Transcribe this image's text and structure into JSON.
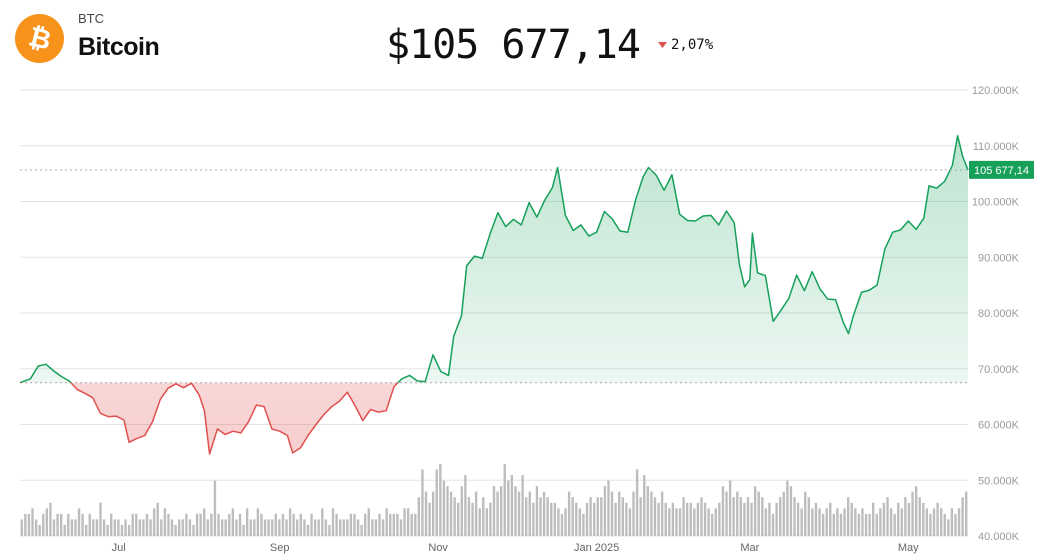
{
  "header": {
    "ticker": "BTC",
    "name": "Bitcoin",
    "logo_icon": "bitcoin-logo-icon",
    "price": "$105 677,14",
    "change": "2,07%",
    "change_direction": "down",
    "change_icon": "triangle-down-icon"
  },
  "colors": {
    "logo": "#F7931A",
    "up": "#16A05A",
    "down": "#E0504E",
    "volume": "#BDBDBD",
    "grid": "#E3E3E3",
    "axis_text": "#9A9A9A"
  },
  "chart_data": {
    "type": "line",
    "ylim": [
      40000,
      120000
    ],
    "y_ticks": [
      120000,
      110000,
      100000,
      90000,
      80000,
      70000,
      60000,
      50000,
      40000
    ],
    "y_tick_labels": [
      "120.000K",
      "110.000K",
      "100.000K",
      "90.000K",
      "80.000K",
      "70.000K",
      "60.000K",
      "50.000K",
      "40.000K"
    ],
    "x_tick_labels": [
      "Jul",
      "Sep",
      "Nov",
      "Jan 2025",
      "Mar",
      "May"
    ],
    "x_tick_dates": [
      "2024-07-01",
      "2024-09-01",
      "2024-11-01",
      "2025-01-01",
      "2025-03-01",
      "2025-05-01"
    ],
    "xlim": [
      "2024-05-24",
      "2025-05-24"
    ],
    "baseline": 67500,
    "current_value": 105677.14,
    "current_value_label": "105 677,14",
    "grid": true,
    "series": [
      {
        "type": "line",
        "points": [
          [
            "2024-05-24",
            67500
          ],
          [
            "2024-05-28",
            68200
          ],
          [
            "2024-05-31",
            70500
          ],
          [
            "2024-06-03",
            70800
          ],
          [
            "2024-06-06",
            69600
          ],
          [
            "2024-06-09",
            68600
          ],
          [
            "2024-06-12",
            67800
          ],
          [
            "2024-06-15",
            66300
          ],
          [
            "2024-06-18",
            65600
          ],
          [
            "2024-06-21",
            64800
          ],
          [
            "2024-06-24",
            62000
          ],
          [
            "2024-06-27",
            61400
          ],
          [
            "2024-06-30",
            61500
          ],
          [
            "2024-07-03",
            60800
          ],
          [
            "2024-07-05",
            56800
          ],
          [
            "2024-07-08",
            57500
          ],
          [
            "2024-07-11",
            58000
          ],
          [
            "2024-07-14",
            60500
          ],
          [
            "2024-07-17",
            64500
          ],
          [
            "2024-07-20",
            66500
          ],
          [
            "2024-07-23",
            67300
          ],
          [
            "2024-07-26",
            66600
          ],
          [
            "2024-07-29",
            67400
          ],
          [
            "2024-08-01",
            65300
          ],
          [
            "2024-08-03",
            62500
          ],
          [
            "2024-08-05",
            54700
          ],
          [
            "2024-08-08",
            59200
          ],
          [
            "2024-08-11",
            58200
          ],
          [
            "2024-08-14",
            58800
          ],
          [
            "2024-08-17",
            58500
          ],
          [
            "2024-08-20",
            60500
          ],
          [
            "2024-08-23",
            63500
          ],
          [
            "2024-08-26",
            63200
          ],
          [
            "2024-08-29",
            59200
          ],
          [
            "2024-09-01",
            58800
          ],
          [
            "2024-09-04",
            58000
          ],
          [
            "2024-09-06",
            54900
          ],
          [
            "2024-09-09",
            55800
          ],
          [
            "2024-09-12",
            58100
          ],
          [
            "2024-09-15",
            60000
          ],
          [
            "2024-09-18",
            61800
          ],
          [
            "2024-09-21",
            63200
          ],
          [
            "2024-09-24",
            64200
          ],
          [
            "2024-09-27",
            65800
          ],
          [
            "2024-09-30",
            63400
          ],
          [
            "2024-10-03",
            60700
          ],
          [
            "2024-10-06",
            62700
          ],
          [
            "2024-10-09",
            62200
          ],
          [
            "2024-10-12",
            62500
          ],
          [
            "2024-10-15",
            66800
          ],
          [
            "2024-10-18",
            68200
          ],
          [
            "2024-10-21",
            68800
          ],
          [
            "2024-10-24",
            67800
          ],
          [
            "2024-10-27",
            67700
          ],
          [
            "2024-10-30",
            72500
          ],
          [
            "2024-11-02",
            69500
          ],
          [
            "2024-11-05",
            68800
          ],
          [
            "2024-11-07",
            75800
          ],
          [
            "2024-11-10",
            79500
          ],
          [
            "2024-11-12",
            88500
          ],
          [
            "2024-11-15",
            90200
          ],
          [
            "2024-11-18",
            89800
          ],
          [
            "2024-11-21",
            94200
          ],
          [
            "2024-11-24",
            98000
          ],
          [
            "2024-11-27",
            95500
          ],
          [
            "2024-11-30",
            96800
          ],
          [
            "2024-12-03",
            95800
          ],
          [
            "2024-12-06",
            99800
          ],
          [
            "2024-12-09",
            97200
          ],
          [
            "2024-12-12",
            100200
          ],
          [
            "2024-12-15",
            102500
          ],
          [
            "2024-12-17",
            106100
          ],
          [
            "2024-12-20",
            97500
          ],
          [
            "2024-12-23",
            94800
          ],
          [
            "2024-12-26",
            95800
          ],
          [
            "2024-12-29",
            93800
          ],
          [
            "2025-01-01",
            94500
          ],
          [
            "2025-01-04",
            98200
          ],
          [
            "2025-01-07",
            96900
          ],
          [
            "2025-01-10",
            94700
          ],
          [
            "2025-01-13",
            94500
          ],
          [
            "2025-01-16",
            100300
          ],
          [
            "2025-01-19",
            104500
          ],
          [
            "2025-01-21",
            106100
          ],
          [
            "2025-01-24",
            104700
          ],
          [
            "2025-01-27",
            102000
          ],
          [
            "2025-01-30",
            104800
          ],
          [
            "2025-02-02",
            97700
          ],
          [
            "2025-02-05",
            96600
          ],
          [
            "2025-02-08",
            96500
          ],
          [
            "2025-02-11",
            97400
          ],
          [
            "2025-02-14",
            97500
          ],
          [
            "2025-02-17",
            95800
          ],
          [
            "2025-02-20",
            98300
          ],
          [
            "2025-02-23",
            96200
          ],
          [
            "2025-02-25",
            88700
          ],
          [
            "2025-02-27",
            84700
          ],
          [
            "2025-03-01",
            86000
          ],
          [
            "2025-03-02",
            94300
          ],
          [
            "2025-03-04",
            87200
          ],
          [
            "2025-03-07",
            86700
          ],
          [
            "2025-03-10",
            78500
          ],
          [
            "2025-03-13",
            80500
          ],
          [
            "2025-03-16",
            82600
          ],
          [
            "2025-03-19",
            86800
          ],
          [
            "2025-03-22",
            84000
          ],
          [
            "2025-03-25",
            87400
          ],
          [
            "2025-03-28",
            84300
          ],
          [
            "2025-03-31",
            82500
          ],
          [
            "2025-04-03",
            82400
          ],
          [
            "2025-04-06",
            78300
          ],
          [
            "2025-04-08",
            76300
          ],
          [
            "2025-04-10",
            79700
          ],
          [
            "2025-04-13",
            83700
          ],
          [
            "2025-04-16",
            84100
          ],
          [
            "2025-04-19",
            85000
          ],
          [
            "2025-04-22",
            91500
          ],
          [
            "2025-04-25",
            94500
          ],
          [
            "2025-04-28",
            94900
          ],
          [
            "2025-05-01",
            96500
          ],
          [
            "2025-05-04",
            95000
          ],
          [
            "2025-05-07",
            97000
          ],
          [
            "2025-05-09",
            102800
          ],
          [
            "2025-05-12",
            102400
          ],
          [
            "2025-05-15",
            103600
          ],
          [
            "2025-05-18",
            106500
          ],
          [
            "2025-05-20",
            111800
          ],
          [
            "2025-05-22",
            108000
          ],
          [
            "2025-05-24",
            105677
          ]
        ]
      }
    ],
    "volume": [
      3,
      4,
      4,
      5,
      3,
      2,
      4,
      5,
      6,
      3,
      4,
      4,
      2,
      4,
      3,
      3,
      5,
      4,
      2,
      4,
      3,
      3,
      6,
      3,
      2,
      4,
      3,
      3,
      2,
      3,
      2,
      4,
      4,
      3,
      3,
      4,
      3,
      5,
      6,
      3,
      5,
      4,
      3,
      2,
      3,
      3,
      4,
      3,
      2,
      4,
      4,
      5,
      3,
      4,
      10,
      4,
      3,
      3,
      4,
      5,
      3,
      4,
      2,
      5,
      3,
      3,
      5,
      4,
      3,
      3,
      3,
      4,
      3,
      4,
      3,
      5,
      4,
      3,
      4,
      3,
      2,
      4,
      3,
      3,
      5,
      3,
      2,
      5,
      4,
      3,
      3,
      3,
      4,
      4,
      3,
      2,
      4,
      5,
      3,
      3,
      4,
      3,
      5,
      4,
      4,
      4,
      3,
      5,
      5,
      4,
      4,
      7,
      12,
      8,
      6,
      8,
      12,
      13,
      10,
      9,
      8,
      7,
      6,
      9,
      11,
      7,
      6,
      8,
      5,
      7,
      5,
      6,
      9,
      8,
      9,
      13,
      10,
      11,
      9,
      8,
      11,
      7,
      8,
      6,
      9,
      7,
      8,
      7,
      6,
      6,
      5,
      4,
      5,
      8,
      7,
      6,
      5,
      4,
      6,
      7,
      6,
      7,
      7,
      9,
      10,
      8,
      6,
      8,
      7,
      6,
      5,
      8,
      12,
      7,
      11,
      9,
      8,
      7,
      6,
      8,
      6,
      5,
      6,
      5,
      5,
      7,
      6,
      6,
      5,
      6,
      7,
      6,
      5,
      4,
      5,
      6,
      9,
      8,
      10,
      7,
      8,
      7,
      6,
      7,
      6,
      9,
      8,
      7,
      5,
      6,
      4,
      6,
      7,
      8,
      10,
      9,
      7,
      6,
      5,
      8,
      7,
      5,
      6,
      5,
      4,
      5,
      6,
      4,
      5,
      4,
      5,
      7,
      6,
      5,
      4,
      5,
      4,
      4,
      6,
      4,
      5,
      6,
      7,
      5,
      4,
      6,
      5,
      7,
      6,
      8,
      9,
      7,
      6,
      5,
      4,
      5,
      6,
      5,
      4,
      3,
      5,
      4,
      5,
      7,
      8
    ]
  }
}
